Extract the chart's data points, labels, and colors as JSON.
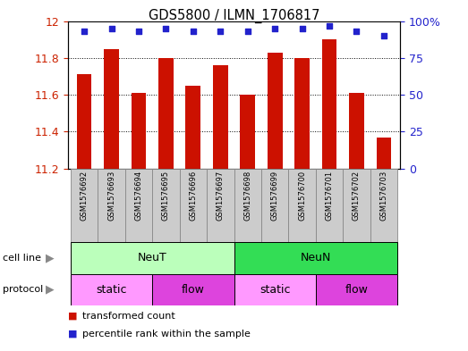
{
  "title": "GDS5800 / ILMN_1706817",
  "samples": [
    "GSM1576692",
    "GSM1576693",
    "GSM1576694",
    "GSM1576695",
    "GSM1576696",
    "GSM1576697",
    "GSM1576698",
    "GSM1576699",
    "GSM1576700",
    "GSM1576701",
    "GSM1576702",
    "GSM1576703"
  ],
  "bar_values": [
    11.71,
    11.85,
    11.61,
    11.8,
    11.65,
    11.76,
    11.6,
    11.83,
    11.8,
    11.9,
    11.61,
    11.37
  ],
  "percentile_values": [
    93,
    95,
    93,
    95,
    93,
    93,
    93,
    95,
    95,
    97,
    93,
    90
  ],
  "bar_color": "#CC1100",
  "dot_color": "#2222CC",
  "ylim_left": [
    11.2,
    12.0
  ],
  "ylim_right": [
    0,
    100
  ],
  "yticks_left": [
    11.2,
    11.4,
    11.6,
    11.8,
    12.0
  ],
  "ytick_labels_left": [
    "11.2",
    "11.4",
    "11.6",
    "11.8",
    "12"
  ],
  "yticks_right": [
    0,
    25,
    50,
    75,
    100
  ],
  "ytick_labels_right": [
    "0",
    "25",
    "50",
    "75",
    "100%"
  ],
  "bar_color_dark": "#AA0000",
  "tick_color_left": "#CC2200",
  "tick_color_right": "#2222CC",
  "cell_line_labels": [
    {
      "label": "NeuT",
      "start": 0,
      "end": 5,
      "color": "#BBFFBB"
    },
    {
      "label": "NeuN",
      "start": 6,
      "end": 11,
      "color": "#33DD55"
    }
  ],
  "protocol_labels": [
    {
      "label": "static",
      "start": 0,
      "end": 2,
      "color": "#FF99FF"
    },
    {
      "label": "flow",
      "start": 3,
      "end": 5,
      "color": "#DD44DD"
    },
    {
      "label": "static",
      "start": 6,
      "end": 8,
      "color": "#FF99FF"
    },
    {
      "label": "flow",
      "start": 9,
      "end": 11,
      "color": "#DD44DD"
    }
  ],
  "legend_items": [
    {
      "label": "transformed count",
      "color": "#CC1100"
    },
    {
      "label": "percentile rank within the sample",
      "color": "#2222CC"
    }
  ],
  "sample_box_color": "#CCCCCC",
  "sample_box_edge": "#888888"
}
